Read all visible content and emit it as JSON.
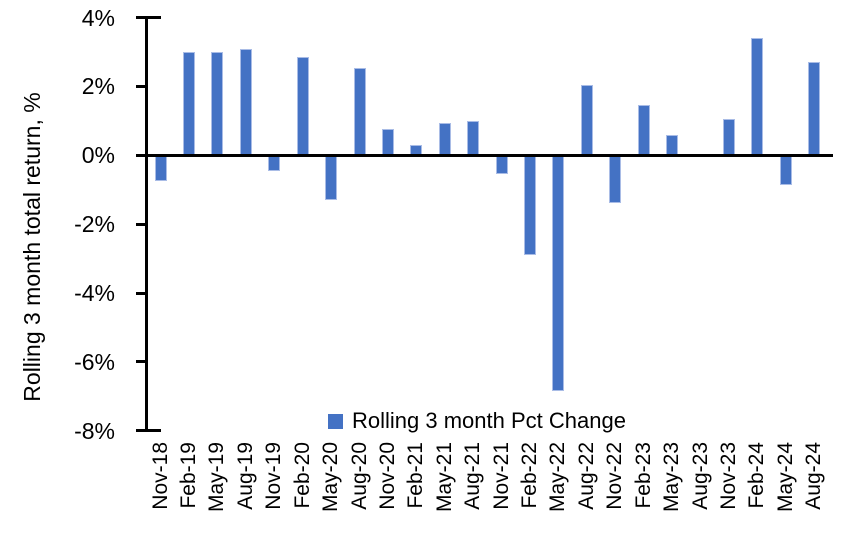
{
  "chart_data": {
    "type": "bar",
    "title": "",
    "ylabel": "Rolling 3 month total return, %",
    "xlabel": "",
    "categories": [
      "Nov-18",
      "Feb-19",
      "May-19",
      "Aug-19",
      "Nov-19",
      "Feb-20",
      "May-20",
      "Aug-20",
      "Nov-20",
      "Feb-21",
      "May-21",
      "Aug-21",
      "Nov-21",
      "Feb-22",
      "May-22",
      "Aug-22",
      "Nov-22",
      "Feb-23",
      "May-23",
      "Aug-23",
      "Nov-23",
      "Feb-24",
      "May-24",
      "Aug-24"
    ],
    "series": [
      {
        "name": "Rolling 3 month Pct Change",
        "values": [
          -0.75,
          3.0,
          3.0,
          3.1,
          -0.45,
          2.85,
          -1.3,
          2.55,
          0.75,
          0.3,
          0.95,
          1.0,
          -0.55,
          -2.9,
          -6.85,
          2.05,
          -1.4,
          1.45,
          0.6,
          0.0,
          1.05,
          3.4,
          -0.85,
          2.7
        ]
      }
    ],
    "ylim": [
      -8,
      4
    ],
    "ytick_values": [
      4,
      2,
      0,
      -2,
      -4,
      -6,
      -8
    ],
    "ytick_labels": [
      "4%",
      "2%",
      "0%",
      "-2%",
      "-4%",
      "-6%",
      "-8%"
    ],
    "grid": "off",
    "legend_position": "bottom",
    "colors": {
      "bar_fill": "#4472C4",
      "bar_border": "#A9BCE6",
      "axis": "#000000",
      "text": "#000000",
      "background": "#FFFFFF"
    }
  }
}
